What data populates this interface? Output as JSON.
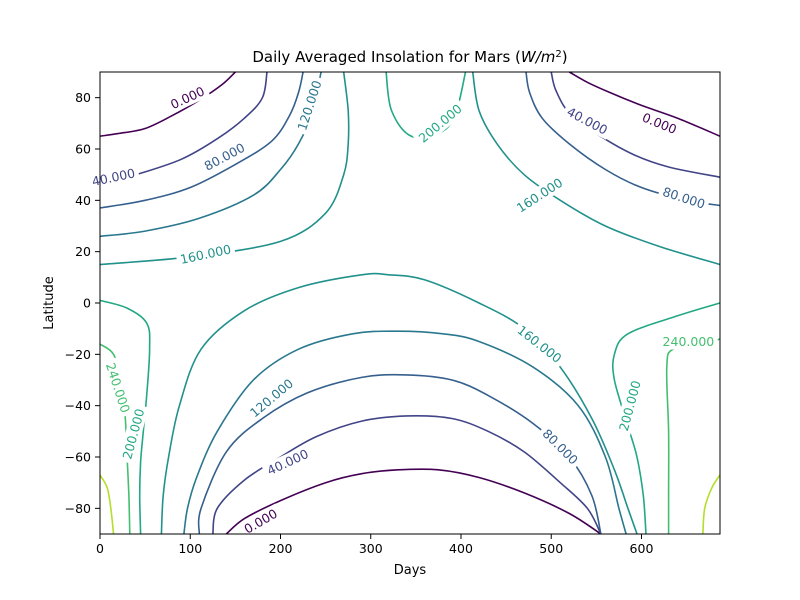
{
  "chart_data": {
    "type": "contour",
    "title_main": "Daily Averaged Insolation for Mars (",
    "title_math": "W/m",
    "title_sup": "2",
    "title_close": ")",
    "xlabel": "Days",
    "ylabel": "Latitude",
    "xlim": [
      0,
      687
    ],
    "ylim": [
      -90,
      90
    ],
    "x_ticks": [
      0,
      100,
      200,
      300,
      400,
      500,
      600
    ],
    "x_tick_labels": [
      "0",
      "100",
      "200",
      "300",
      "400",
      "500",
      "600"
    ],
    "y_ticks": [
      -80,
      -60,
      -40,
      -20,
      0,
      20,
      40,
      60,
      80
    ],
    "y_tick_labels": [
      "−80",
      "−60",
      "−40",
      "−20",
      "0",
      "20",
      "40",
      "60",
      "80"
    ],
    "grid": false,
    "colors": {
      "0": "#440154",
      "40": "#414487",
      "80": "#355f8d",
      "120": "#2a788e",
      "160": "#21918c",
      "200": "#22a884",
      "240": "#44bf70",
      "280": "#b5de2b"
    },
    "levels": [
      {
        "level": 0,
        "label": "0.000",
        "paths": [
          [
            [
              0,
              65
            ],
            [
              20,
              66
            ],
            [
              50,
              68
            ],
            [
              80,
              73
            ],
            [
              110,
              79
            ],
            [
              135,
              85
            ],
            [
              150,
              90
            ]
          ],
          [
            [
              520,
              90
            ],
            [
              540,
              86
            ],
            [
              565,
              82
            ],
            [
              600,
              77
            ],
            [
              640,
              72
            ],
            [
              687,
              65
            ]
          ],
          [
            [
              140,
              -90
            ],
            [
              160,
              -84
            ],
            [
              200,
              -77
            ],
            [
              250,
              -70
            ],
            [
              290,
              -66.5
            ],
            [
              330,
              -65
            ],
            [
              375,
              -65
            ],
            [
              420,
              -68
            ],
            [
              470,
              -74
            ],
            [
              520,
              -82
            ],
            [
              555,
              -90
            ]
          ]
        ],
        "labels": [
          {
            "x": 97,
            "y": 80,
            "angle": -25
          },
          {
            "x": 620,
            "y": 70,
            "angle": 22
          },
          {
            "x": 178,
            "y": -85,
            "angle": -30
          }
        ]
      },
      {
        "level": 40,
        "label": "40.000",
        "paths": [
          [
            [
              0,
              46
            ],
            [
              40,
              50
            ],
            [
              90,
              56
            ],
            [
              130,
              64
            ],
            [
              160,
              72
            ],
            [
              180,
              80
            ],
            [
              185,
              90
            ]
          ],
          [
            [
              500,
              90
            ],
            [
              505,
              83
            ],
            [
              520,
              74
            ],
            [
              550,
              66
            ],
            [
              590,
              58
            ],
            [
              630,
              53
            ],
            [
              687,
              49
            ]
          ],
          [
            [
              125,
              -90
            ],
            [
              130,
              -80
            ],
            [
              160,
              -69
            ],
            [
              200,
              -60
            ],
            [
              240,
              -52
            ],
            [
              290,
              -46
            ],
            [
              340,
              -44
            ],
            [
              390,
              -45
            ],
            [
              430,
              -50
            ],
            [
              470,
              -58
            ],
            [
              510,
              -70
            ],
            [
              540,
              -80
            ],
            [
              555,
              -90
            ]
          ]
        ],
        "labels": [
          {
            "x": 15,
            "y": 49,
            "angle": -12
          },
          {
            "x": 540,
            "y": 71,
            "angle": 28
          },
          {
            "x": 208,
            "y": -62,
            "angle": -25
          }
        ]
      },
      {
        "level": 80,
        "label": "80.000",
        "paths": [
          [
            [
              0,
              37
            ],
            [
              50,
              40
            ],
            [
              100,
              45
            ],
            [
              150,
              54
            ],
            [
              190,
              63
            ],
            [
              210,
              73
            ],
            [
              220,
              82
            ],
            [
              225,
              90
            ]
          ],
          [
            [
              472,
              90
            ],
            [
              476,
              82
            ],
            [
              490,
              72
            ],
            [
              520,
              62
            ],
            [
              560,
              52
            ],
            [
              600,
              45
            ],
            [
              650,
              40
            ],
            [
              687,
              38
            ]
          ],
          [
            [
              110,
              -90
            ],
            [
              112,
              -80
            ],
            [
              140,
              -58
            ],
            [
              180,
              -45
            ],
            [
              230,
              -35
            ],
            [
              290,
              -29
            ],
            [
              340,
              -28
            ],
            [
              390,
              -30
            ],
            [
              430,
              -36
            ],
            [
              480,
              -47
            ],
            [
              520,
              -60
            ],
            [
              545,
              -75
            ],
            [
              555,
              -90
            ]
          ]
        ],
        "labels": [
          {
            "x": 138,
            "y": 57,
            "angle": -28
          },
          {
            "x": 647,
            "y": 41,
            "angle": 18
          },
          {
            "x": 510,
            "y": -56,
            "angle": 45
          }
        ]
      },
      {
        "level": 120,
        "label": "120.000",
        "paths": [
          [
            [
              0,
              26
            ],
            [
              50,
              28
            ],
            [
              110,
              33
            ],
            [
              170,
              42
            ],
            [
              200,
              52
            ],
            [
              220,
              62
            ],
            [
              235,
              74
            ],
            [
              245,
              90
            ]
          ],
          [
            [
              93,
              -90
            ],
            [
              97,
              -80
            ],
            [
              107,
              -68
            ],
            [
              130,
              -50
            ],
            [
              170,
              -30
            ],
            [
              220,
              -18
            ],
            [
              280,
              -12
            ],
            [
              330,
              -11
            ],
            [
              380,
              -12
            ],
            [
              420,
              -15
            ],
            [
              480,
              -25
            ],
            [
              530,
              -40
            ],
            [
              560,
              -60
            ],
            [
              575,
              -80
            ],
            [
              583,
              -90
            ]
          ]
        ],
        "labels": [
          {
            "x": 232,
            "y": 77,
            "angle": -72
          },
          {
            "x": 190,
            "y": -37,
            "angle": -40
          }
        ]
      },
      {
        "level": 160,
        "label": "160.000",
        "paths": [
          [
            [
              0,
              15
            ],
            [
              100,
              18
            ],
            [
              200,
              24
            ],
            [
              250,
              35
            ],
            [
              270,
              50
            ],
            [
              275,
              62
            ],
            [
              275,
              75
            ],
            [
              270,
              90
            ]
          ],
          [
            [
              413,
              90
            ],
            [
              420,
              75
            ],
            [
              440,
              62
            ],
            [
              470,
              50
            ],
            [
              510,
              40
            ],
            [
              560,
              30
            ],
            [
              620,
              22
            ],
            [
              687,
              15
            ]
          ],
          [
            [
              68,
              -90
            ],
            [
              70,
              -75
            ],
            [
              76,
              -60
            ],
            [
              88,
              -40
            ],
            [
              112,
              -18
            ],
            [
              160,
              -3
            ],
            [
              220,
              6
            ],
            [
              290,
              11
            ],
            [
              320,
              11
            ],
            [
              360,
              9
            ],
            [
              420,
              0
            ],
            [
              470,
              -10
            ],
            [
              510,
              -25
            ],
            [
              545,
              -45
            ],
            [
              570,
              -65
            ],
            [
              585,
              -80
            ],
            [
              595,
              -90
            ]
          ]
        ],
        "labels": [
          {
            "x": 117,
            "y": 19,
            "angle": -12
          },
          {
            "x": 487,
            "y": 42,
            "angle": -33
          },
          {
            "x": 487,
            "y": -16,
            "angle": 38
          }
        ]
      },
      {
        "level": 200,
        "label": "200.000",
        "paths": [
          [
            [
              317,
              90
            ],
            [
              323,
              75
            ],
            [
              345,
              65
            ],
            [
              380,
              67
            ],
            [
              395,
              75
            ],
            [
              405,
              90
            ]
          ],
          [
            [
              0,
              1
            ],
            [
              30,
              -2
            ],
            [
              52,
              -8
            ],
            [
              55,
              -18
            ],
            [
              52,
              -35
            ],
            [
              48,
              -50
            ],
            [
              45,
              -62
            ],
            [
              44,
              -75
            ],
            [
              45,
              -90
            ]
          ],
          [
            [
              687,
              0
            ],
            [
              640,
              -5
            ],
            [
              585,
              -12
            ],
            [
              570,
              -20
            ],
            [
              570,
              -30
            ],
            [
              585,
              -48
            ],
            [
              595,
              -60
            ],
            [
              602,
              -75
            ],
            [
              605,
              -90
            ]
          ]
        ],
        "labels": [
          {
            "x": 377,
            "y": 70,
            "angle": -40
          },
          {
            "x": 37,
            "y": -51,
            "angle": -75
          },
          {
            "x": 587,
            "y": -40,
            "angle": -75
          }
        ]
      },
      {
        "level": 240,
        "label": "240.000",
        "paths": [
          [
            [
              0,
              -16
            ],
            [
              15,
              -20
            ],
            [
              23,
              -30
            ],
            [
              28,
              -45
            ],
            [
              30,
              -60
            ],
            [
              32,
              -75
            ],
            [
              33,
              -90
            ]
          ],
          [
            [
              687,
              -14
            ],
            [
              670,
              -16
            ],
            [
              635,
              -18
            ],
            [
              628,
              -25
            ],
            [
              630,
              -50
            ],
            [
              630,
              -75
            ],
            [
              630,
              -90
            ]
          ]
        ],
        "labels": [
          {
            "x": 20,
            "y": -33,
            "angle": 72
          },
          {
            "x": 652,
            "y": -15,
            "angle": 0
          }
        ]
      },
      {
        "level": 280,
        "label": "",
        "paths": [
          [
            [
              0,
              -67
            ],
            [
              8,
              -72
            ],
            [
              12,
              -80
            ],
            [
              15,
              -90
            ]
          ],
          [
            [
              687,
              -67
            ],
            [
              678,
              -72
            ],
            [
              670,
              -80
            ],
            [
              668,
              -90
            ]
          ]
        ],
        "labels": []
      }
    ]
  }
}
